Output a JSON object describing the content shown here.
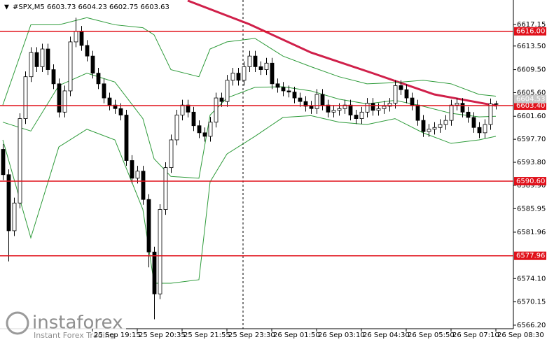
{
  "chart_data": {
    "type": "candlestick",
    "header": "#SPX,M5 6603.73 6604.23 6602.75 6603.63",
    "watermark": {
      "title": "instaforex",
      "subtitle": "Instant Forex Trading"
    },
    "up_color": "#ffffff",
    "down_color": "#000000",
    "level_color": "#e0101a",
    "ylim": [
      6565.6,
      6621.3
    ],
    "yticks": [
      6617.15,
      {
        "value": 6613.5,
        "label": "6613.50"
      },
      {
        "value": 6609.5,
        "label": "6609.50"
      },
      {
        "value": 6605.6,
        "label": "6605.60"
      },
      {
        "value": 6601.6,
        "label": "6601.60"
      },
      {
        "value": 6597.7,
        "label": "6597.70"
      },
      {
        "value": 6593.8,
        "label": "6593.80"
      },
      {
        "value": 6589.9,
        "label": "6589.90"
      },
      6585.95,
      6581.96,
      {
        "value": 6574.1,
        "label": "6574.10"
      },
      6570.15,
      {
        "value": 6566.2,
        "label": "6566.20"
      }
    ],
    "categories": [
      null,
      null,
      null,
      null,
      null,
      null,
      null,
      null,
      null,
      null,
      null,
      null,
      null,
      null,
      null,
      null,
      "25 Sep 19:15",
      null,
      null,
      null,
      null,
      null,
      null,
      null,
      "25 Sep 20:35",
      null,
      null,
      null,
      null,
      null,
      null,
      null,
      "25 Sep 21:55",
      null,
      null,
      null,
      null,
      null,
      null,
      null,
      "25 Sep 23:30",
      null,
      null,
      null,
      null,
      null,
      null,
      null,
      "26 Sep 01:50",
      null,
      null,
      null,
      null,
      null,
      null,
      null,
      "26 Sep 03:10",
      null,
      null,
      null,
      null,
      null,
      null,
      null,
      "26 Sep 04:30",
      null,
      null,
      null,
      null,
      null,
      null,
      null,
      "26 Sep 05:50",
      null,
      null,
      null,
      null,
      null,
      null,
      null,
      "26 Sep 07:10",
      null,
      null,
      null,
      null,
      null,
      null,
      null,
      "26 Sep 08:30"
    ],
    "open": [
      6596.0,
      6591.7,
      6582.2,
      6586.9,
      6601.2,
      6608.3,
      6612.4,
      6610.0,
      6613.0,
      6609.5,
      6607.1,
      6602.3,
      6605.9,
      6614.2,
      6616.0,
      6613.6,
      6611.8,
      6608.9,
      6607.1,
      6604.7,
      6603.5,
      6602.9,
      6601.8,
      6594.1,
      6591.1,
      6592.3,
      6587.5,
      6578.6,
      6571.5,
      6585.8,
      6592.9,
      6597.6,
      6601.8,
      6603.5,
      6602.3,
      6600.0,
      6598.8,
      6598.2,
      6600.6,
      6604.7,
      6604.1,
      6607.7,
      6608.9,
      6607.7,
      6610.0,
      6611.8,
      6610.0,
      6609.5,
      6610.6,
      6607.1,
      6606.5,
      6605.9,
      6605.7,
      6604.7,
      6604.1,
      6603.3,
      6602.9,
      6605.3,
      6603.5,
      6602.3,
      6602.6,
      6602.9,
      6603.5,
      6601.8,
      6601.2,
      6602.3,
      6603.8,
      6602.6,
      6602.9,
      6603.3,
      6603.8,
      6606.8,
      6606.1,
      6604.7,
      6603.5,
      6600.9,
      6599.0,
      6599.4,
      6599.7,
      6600.2,
      6600.9,
      6603.5,
      6603.8,
      6602.3,
      6601.4,
      6599.7,
      6598.8,
      6600.2,
      6603.73
    ],
    "high": [
      6596.9,
      6592.6,
      6587.8,
      6602.1,
      6609.2,
      6613.3,
      6613.3,
      6613.9,
      6613.9,
      6610.4,
      6608.0,
      6606.8,
      6615.1,
      6618.3,
      6616.9,
      6614.5,
      6612.7,
      6609.8,
      6608.0,
      6605.6,
      6604.4,
      6603.8,
      6602.7,
      6595.0,
      6593.2,
      6593.2,
      6588.4,
      6579.5,
      6586.7,
      6593.8,
      6598.5,
      6602.7,
      6604.4,
      6604.4,
      6603.2,
      6600.9,
      6599.7,
      6601.5,
      6605.6,
      6605.6,
      6608.6,
      6609.8,
      6609.8,
      6610.9,
      6612.7,
      6612.7,
      6610.9,
      6611.5,
      6611.5,
      6608.0,
      6607.4,
      6606.8,
      6606.6,
      6605.6,
      6605.0,
      6604.2,
      6606.2,
      6606.2,
      6604.4,
      6603.5,
      6603.8,
      6604.4,
      6604.4,
      6602.7,
      6603.2,
      6604.7,
      6604.7,
      6603.8,
      6604.2,
      6604.7,
      6607.7,
      6607.7,
      6607.0,
      6605.6,
      6604.4,
      6601.8,
      6600.3,
      6600.6,
      6601.1,
      6601.8,
      6604.4,
      6604.7,
      6604.7,
      6603.2,
      6602.3,
      6600.6,
      6601.1,
      6604.6,
      6604.23
    ],
    "low": [
      6590.8,
      6577.0,
      6581.3,
      6586.0,
      6600.3,
      6607.4,
      6609.1,
      6609.1,
      6608.6,
      6606.2,
      6601.4,
      6601.4,
      6605.0,
      6613.3,
      6612.7,
      6610.9,
      6608.0,
      6606.2,
      6603.8,
      6602.6,
      6602.0,
      6600.9,
      6593.2,
      6590.2,
      6590.2,
      6586.6,
      6576.0,
      6567.2,
      6570.6,
      6584.9,
      6592.0,
      6596.7,
      6600.9,
      6601.4,
      6599.1,
      6597.9,
      6597.3,
      6597.3,
      6599.7,
      6603.2,
      6603.2,
      6606.8,
      6606.8,
      6606.8,
      6609.1,
      6609.1,
      6608.6,
      6608.6,
      6606.2,
      6605.6,
      6605.0,
      6604.8,
      6603.8,
      6603.2,
      6602.4,
      6602.0,
      6602.0,
      6602.6,
      6601.4,
      6601.4,
      6601.7,
      6602.0,
      6600.9,
      6600.3,
      6600.3,
      6601.4,
      6601.7,
      6601.7,
      6602.0,
      6602.4,
      6602.9,
      6605.2,
      6603.8,
      6602.6,
      6600.0,
      6598.1,
      6598.1,
      6598.5,
      6598.8,
      6599.3,
      6600.0,
      6602.6,
      6601.4,
      6600.5,
      6598.8,
      6597.9,
      6597.9,
      6599.3,
      6602.75
    ],
    "close": [
      6591.7,
      6582.2,
      6586.9,
      6601.2,
      6608.3,
      6612.4,
      6610.0,
      6613.0,
      6609.5,
      6607.1,
      6602.3,
      6605.9,
      6614.2,
      6616.0,
      6613.6,
      6611.8,
      6608.9,
      6607.1,
      6604.7,
      6603.5,
      6602.9,
      6601.8,
      6594.1,
      6591.1,
      6592.3,
      6587.5,
      6578.6,
      6571.5,
      6585.8,
      6592.9,
      6597.6,
      6601.8,
      6603.5,
      6602.3,
      6600.0,
      6598.8,
      6598.2,
      6600.6,
      6604.7,
      6604.1,
      6607.7,
      6608.9,
      6607.7,
      6610.0,
      6611.8,
      6610.0,
      6609.5,
      6610.6,
      6607.1,
      6606.5,
      6605.9,
      6605.7,
      6604.7,
      6604.1,
      6603.3,
      6602.9,
      6605.3,
      6603.5,
      6602.3,
      6602.6,
      6602.9,
      6603.5,
      6601.8,
      6601.2,
      6602.3,
      6603.8,
      6602.6,
      6602.9,
      6603.3,
      6603.8,
      6606.8,
      6606.1,
      6604.7,
      6603.5,
      6600.9,
      6599.0,
      6599.4,
      6599.7,
      6600.2,
      6600.9,
      6603.5,
      6603.8,
      6602.3,
      6601.4,
      6599.7,
      6598.8,
      6600.2,
      6603.7,
      6603.63
    ],
    "overlays": [
      {
        "color": "#d0204a",
        "width": 3,
        "x": [
          33,
          44,
          55,
          66,
          77,
          88
        ],
        "values": [
          6621.2,
          6617.2,
          6612.4,
          6608.9,
          6605.3,
          6603.4
        ]
      },
      {
        "color": "#2e9b3a",
        "width": 1,
        "x": [
          0,
          5,
          10,
          15,
          20,
          25,
          27,
          30,
          35,
          37,
          40,
          45,
          50,
          55,
          60,
          65,
          70,
          75,
          80,
          85,
          88
        ],
        "values": [
          6603.5,
          6617.1,
          6617.1,
          6618.3,
          6617.1,
          6616.6,
          6615.4,
          6609.5,
          6608.3,
          6613.0,
          6614.2,
          6614.8,
          6611.8,
          6610.0,
          6608.3,
          6607.1,
          6607.3,
          6607.7,
          6607.1,
          6605.3,
          6605.0
        ]
      },
      {
        "color": "#2e9b3a",
        "width": 1,
        "x": [
          0,
          5,
          10,
          15,
          20,
          25,
          27,
          30,
          35,
          37,
          40,
          45,
          50,
          55,
          60,
          65,
          70,
          75,
          80,
          85,
          88
        ],
        "values": [
          6600.6,
          6599.1,
          6606.8,
          6608.9,
          6607.4,
          6601.2,
          6594.4,
          6591.4,
          6591.1,
          6601.8,
          6604.7,
          6606.5,
          6606.6,
          6605.9,
          6604.5,
          6603.7,
          6604.3,
          6603.3,
          6602.1,
          6601.5,
          6601.6
        ]
      },
      {
        "color": "#2e9b3a",
        "width": 1,
        "x": [
          0,
          5,
          10,
          15,
          20,
          25,
          27,
          30,
          35,
          37,
          40,
          45,
          50,
          55,
          60,
          65,
          70,
          75,
          80,
          85,
          88
        ],
        "values": [
          6597.6,
          6581.0,
          6596.4,
          6599.4,
          6597.6,
          6585.8,
          6573.3,
          6573.3,
          6573.9,
          6590.5,
          6595.2,
          6598.2,
          6601.4,
          6601.7,
          6600.6,
          6600.2,
          6601.2,
          6598.8,
          6597.0,
          6597.6,
          6598.2
        ]
      }
    ],
    "levels": [
      {
        "value": 6616.0,
        "label": "6616.00"
      },
      {
        "value": 6603.4,
        "label": "6603.40"
      },
      {
        "value": 6590.6,
        "label": "6590.60"
      },
      {
        "value": 6577.96,
        "label": "6577.96"
      }
    ],
    "price_tags": [
      {
        "value": 6604.53,
        "label": "6604.53"
      }
    ]
  }
}
